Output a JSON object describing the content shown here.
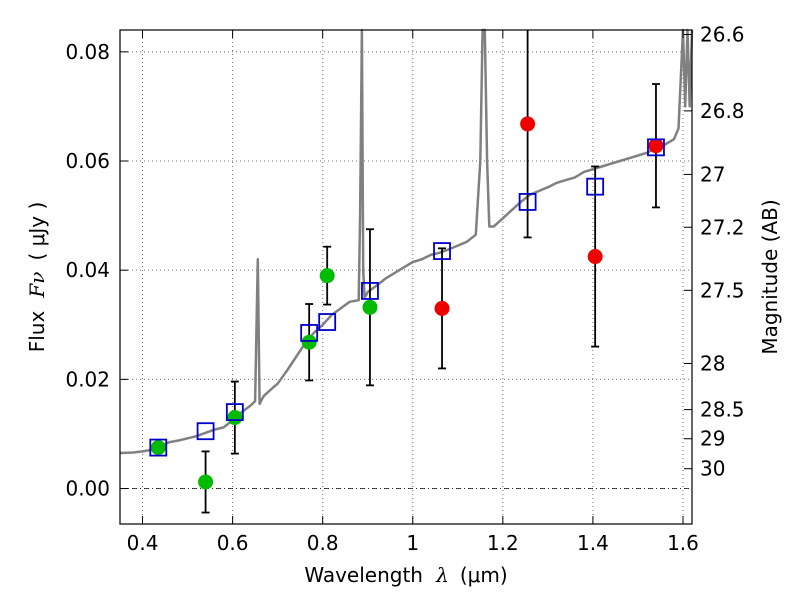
{
  "chart_data": {
    "type": "scatter",
    "xlabel": "Wavelength",
    "xlabel_symbol": "λ",
    "xlabel_unit": "(μm)",
    "ylabel": "Flux",
    "ylabel_symbol": "Fν",
    "ylabel_unit": "( μJy )",
    "y2label": "Magnitude (AB)",
    "xlim": [
      0.35,
      1.62
    ],
    "ylim": [
      -0.0065,
      0.084
    ],
    "x_ticks": [
      0.4,
      0.6,
      0.8,
      1.0,
      1.2,
      1.4,
      1.6
    ],
    "x_tick_labels": [
      "0.4",
      "0.6",
      "0.8",
      "1",
      "1.2",
      "1.4",
      "1.6"
    ],
    "y_ticks": [
      0.0,
      0.02,
      0.04,
      0.06,
      0.08
    ],
    "y_tick_labels": [
      "0.00",
      "0.02",
      "0.04",
      "0.06",
      "0.08"
    ],
    "y2_ticks": [
      {
        "label": "26.6",
        "mag": 26.6
      },
      {
        "label": "26.8",
        "mag": 26.8
      },
      {
        "label": "27",
        "mag": 27.0
      },
      {
        "label": "27.2",
        "mag": 27.2
      },
      {
        "label": "27.5",
        "mag": 27.5
      },
      {
        "label": "28",
        "mag": 28.0
      },
      {
        "label": "28.5",
        "mag": 28.5
      },
      {
        "label": "29",
        "mag": 29.0
      },
      {
        "label": "30",
        "mag": 30.0
      }
    ],
    "grid": true,
    "colors": {
      "spectrum": "#808080",
      "model": "#0000cc",
      "green": "#00bb00",
      "red": "#ee0000",
      "errorbar": "#000000"
    },
    "series": [
      {
        "name": "model-spectrum",
        "kind": "line",
        "x": [
          0.35,
          0.38,
          0.4,
          0.42,
          0.44,
          0.46,
          0.48,
          0.5,
          0.52,
          0.54,
          0.56,
          0.58,
          0.6,
          0.62,
          0.64,
          0.65,
          0.656,
          0.66,
          0.666,
          0.67,
          0.69,
          0.7,
          0.72,
          0.74,
          0.76,
          0.78,
          0.8,
          0.82,
          0.84,
          0.86,
          0.88,
          0.883,
          0.887,
          0.89,
          0.893,
          0.897,
          0.9,
          0.92,
          0.94,
          0.96,
          0.98,
          1.0,
          1.02,
          1.04,
          1.06,
          1.08,
          1.1,
          1.12,
          1.14,
          1.15,
          1.155,
          1.16,
          1.165,
          1.17,
          1.18,
          1.2,
          1.22,
          1.24,
          1.26,
          1.28,
          1.3,
          1.32,
          1.34,
          1.36,
          1.38,
          1.4,
          1.42,
          1.44,
          1.46,
          1.48,
          1.5,
          1.52,
          1.54,
          1.56,
          1.58,
          1.59,
          1.6,
          1.605,
          1.61,
          1.615,
          1.62
        ],
        "y": [
          0.0065,
          0.0066,
          0.0068,
          0.0071,
          0.0078,
          0.0085,
          0.0088,
          0.0092,
          0.0096,
          0.0102,
          0.0108,
          0.0112,
          0.0125,
          0.014,
          0.0152,
          0.016,
          0.042,
          0.0155,
          0.0165,
          0.017,
          0.0185,
          0.0192,
          0.0215,
          0.024,
          0.0265,
          0.0285,
          0.03,
          0.0318,
          0.033,
          0.0342,
          0.0345,
          0.05,
          0.084,
          0.04,
          0.035,
          0.0355,
          0.036,
          0.0372,
          0.0385,
          0.0395,
          0.0405,
          0.0415,
          0.042,
          0.0428,
          0.0432,
          0.0438,
          0.0445,
          0.0452,
          0.0465,
          0.06,
          0.084,
          0.084,
          0.06,
          0.048,
          0.048,
          0.0495,
          0.051,
          0.0525,
          0.0538,
          0.0545,
          0.0552,
          0.056,
          0.0565,
          0.057,
          0.058,
          0.0585,
          0.059,
          0.0595,
          0.06,
          0.0605,
          0.061,
          0.0615,
          0.0625,
          0.063,
          0.064,
          0.066,
          0.084,
          0.07,
          0.084,
          0.07,
          0.084
        ]
      },
      {
        "name": "model-photometry",
        "kind": "open-square",
        "x": [
          0.435,
          0.54,
          0.605,
          0.77,
          0.81,
          0.905,
          1.065,
          1.255,
          1.405,
          1.54
        ],
        "y": [
          0.0075,
          0.0105,
          0.014,
          0.0285,
          0.0305,
          0.0362,
          0.0435,
          0.0525,
          0.0553,
          0.0625
        ]
      },
      {
        "name": "detections",
        "kind": "green-dot",
        "x": [
          0.435,
          0.54,
          0.605,
          0.77,
          0.81,
          0.905
        ],
        "y": [
          0.0075,
          0.0012,
          0.013,
          0.0268,
          0.039,
          0.0332
        ],
        "err": [
          0,
          0.0056,
          0.0066,
          0.007,
          0.0053,
          0.0143
        ]
      },
      {
        "name": "upper-band",
        "kind": "red-dot",
        "x": [
          1.065,
          1.255,
          1.405,
          1.54
        ],
        "y": [
          0.033,
          0.0668,
          0.0425,
          0.0628
        ],
        "err": [
          0.011,
          0.0208,
          0.0165,
          0.0113
        ]
      }
    ]
  }
}
